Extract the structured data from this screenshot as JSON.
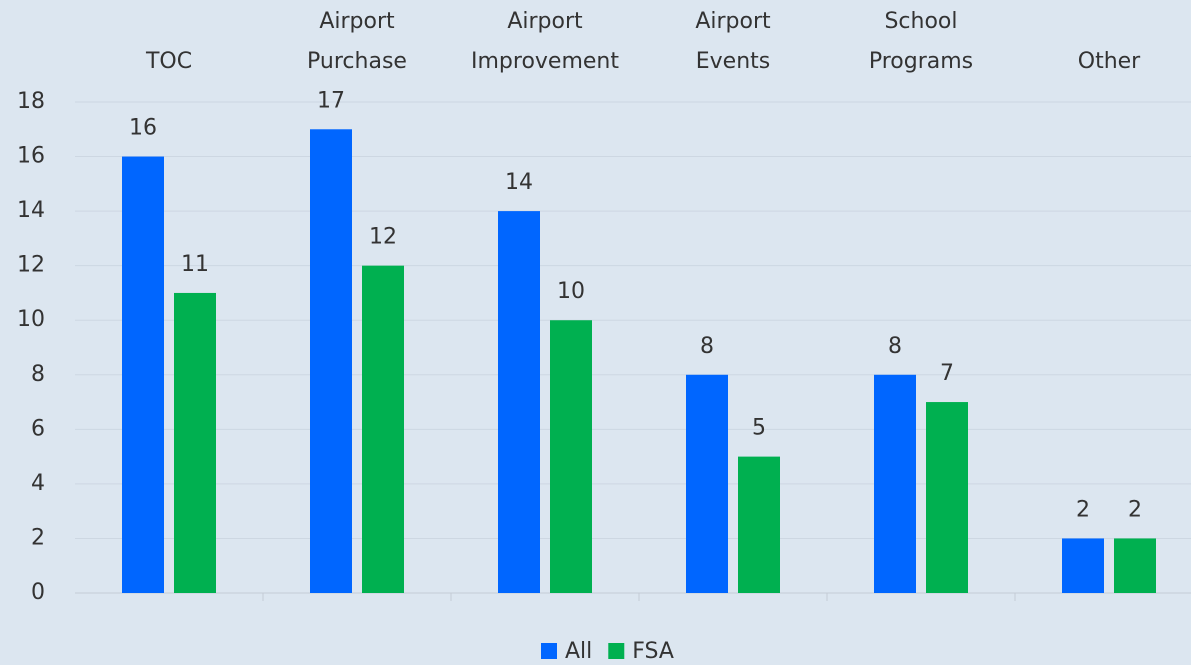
{
  "chart_data": {
    "type": "bar",
    "categories": [
      "TOC",
      "Airport Purchase",
      "Airport Improvement",
      "Airport Events",
      "School Programs",
      "Other"
    ],
    "series": [
      {
        "name": "All",
        "color": "#0066ff",
        "values": [
          16,
          17,
          14,
          8,
          8,
          2
        ]
      },
      {
        "name": "FSA",
        "color": "#00b050",
        "values": [
          11,
          12,
          10,
          5,
          7,
          2
        ]
      }
    ],
    "ylim": [
      0,
      18
    ],
    "yticks": [
      0,
      2,
      4,
      6,
      8,
      10,
      12,
      14,
      16,
      18
    ],
    "grid": true,
    "legend": "bottom"
  }
}
